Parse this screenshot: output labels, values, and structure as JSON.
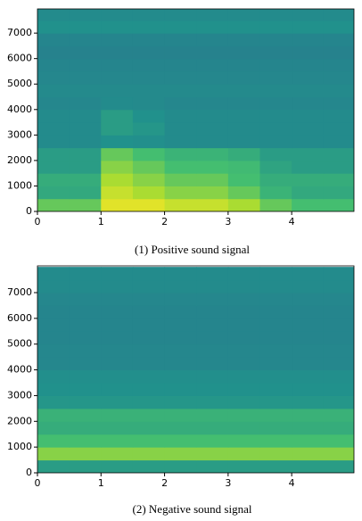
{
  "chart_data": [
    {
      "type": "heatmap",
      "caption": "(1) Positive sound signal",
      "xbins": [
        0,
        0.5,
        1,
        1.5,
        2,
        2.5,
        3,
        3.5,
        4,
        4.5,
        5
      ],
      "ybins": [
        0,
        500,
        1000,
        1500,
        2000,
        2500,
        3000,
        3500,
        4000,
        4500,
        5000,
        5500,
        6000,
        6500,
        7000,
        7500,
        8000
      ],
      "z": [
        [
          0.75,
          0.75,
          0.95,
          0.95,
          0.9,
          0.9,
          0.85,
          0.75,
          0.7,
          0.7
        ],
        [
          0.6,
          0.6,
          0.9,
          0.85,
          0.8,
          0.8,
          0.75,
          0.65,
          0.6,
          0.6
        ],
        [
          0.62,
          0.62,
          0.85,
          0.8,
          0.75,
          0.75,
          0.7,
          0.62,
          0.62,
          0.62
        ],
        [
          0.55,
          0.55,
          0.8,
          0.75,
          0.7,
          0.7,
          0.68,
          0.58,
          0.55,
          0.55
        ],
        [
          0.55,
          0.55,
          0.75,
          0.7,
          0.65,
          0.65,
          0.62,
          0.55,
          0.55,
          0.55
        ],
        [
          0.45,
          0.45,
          0.5,
          0.48,
          0.45,
          0.45,
          0.45,
          0.45,
          0.45,
          0.45
        ],
        [
          0.45,
          0.45,
          0.55,
          0.52,
          0.45,
          0.45,
          0.45,
          0.45,
          0.45,
          0.45
        ],
        [
          0.45,
          0.45,
          0.55,
          0.5,
          0.45,
          0.45,
          0.45,
          0.45,
          0.45,
          0.45
        ],
        [
          0.42,
          0.42,
          0.45,
          0.44,
          0.42,
          0.42,
          0.42,
          0.42,
          0.42,
          0.42
        ],
        [
          0.44,
          0.44,
          0.44,
          0.44,
          0.44,
          0.44,
          0.44,
          0.44,
          0.44,
          0.44
        ],
        [
          0.42,
          0.42,
          0.42,
          0.42,
          0.42,
          0.42,
          0.42,
          0.42,
          0.42,
          0.42
        ],
        [
          0.4,
          0.4,
          0.4,
          0.4,
          0.4,
          0.4,
          0.4,
          0.4,
          0.4,
          0.4
        ],
        [
          0.38,
          0.38,
          0.38,
          0.38,
          0.38,
          0.38,
          0.38,
          0.38,
          0.38,
          0.38
        ],
        [
          0.4,
          0.4,
          0.4,
          0.4,
          0.4,
          0.4,
          0.4,
          0.4,
          0.4,
          0.4
        ],
        [
          0.5,
          0.5,
          0.5,
          0.5,
          0.5,
          0.5,
          0.5,
          0.5,
          0.5,
          0.5
        ],
        [
          0.45,
          0.45,
          0.45,
          0.45,
          0.45,
          0.45,
          0.45,
          0.45,
          0.45,
          0.45
        ]
      ],
      "xlim": [
        0,
        4.98
      ],
      "ylim": [
        0,
        7950
      ],
      "xticks": [
        0,
        1,
        2,
        3,
        4
      ],
      "yticks": [
        0,
        1000,
        2000,
        3000,
        4000,
        5000,
        6000,
        7000
      ]
    },
    {
      "type": "heatmap",
      "caption": "(2) Negative sound signal",
      "xbins": [
        0,
        0.5,
        1,
        1.5,
        2,
        2.5,
        3,
        3.5,
        4,
        4.5,
        5
      ],
      "ybins": [
        0,
        500,
        1000,
        1500,
        2000,
        2500,
        3000,
        3500,
        4000,
        4500,
        5000,
        5500,
        6000,
        6500,
        7000,
        7500,
        8000
      ],
      "z": [
        [
          0.55,
          0.55,
          0.55,
          0.55,
          0.55,
          0.55,
          0.55,
          0.55,
          0.55,
          0.55
        ],
        [
          0.8,
          0.8,
          0.8,
          0.8,
          0.8,
          0.8,
          0.8,
          0.8,
          0.8,
          0.8
        ],
        [
          0.7,
          0.7,
          0.7,
          0.7,
          0.7,
          0.7,
          0.7,
          0.7,
          0.7,
          0.7
        ],
        [
          0.62,
          0.62,
          0.62,
          0.62,
          0.62,
          0.62,
          0.62,
          0.62,
          0.62,
          0.62
        ],
        [
          0.64,
          0.64,
          0.64,
          0.64,
          0.64,
          0.64,
          0.64,
          0.64,
          0.64,
          0.64
        ],
        [
          0.52,
          0.52,
          0.52,
          0.52,
          0.52,
          0.52,
          0.52,
          0.52,
          0.52,
          0.52
        ],
        [
          0.5,
          0.5,
          0.5,
          0.5,
          0.5,
          0.5,
          0.5,
          0.5,
          0.5,
          0.5
        ],
        [
          0.48,
          0.48,
          0.48,
          0.48,
          0.48,
          0.48,
          0.48,
          0.48,
          0.48,
          0.48
        ],
        [
          0.42,
          0.42,
          0.42,
          0.42,
          0.42,
          0.42,
          0.42,
          0.42,
          0.42,
          0.42
        ],
        [
          0.42,
          0.42,
          0.42,
          0.42,
          0.42,
          0.42,
          0.42,
          0.42,
          0.42,
          0.42
        ],
        [
          0.4,
          0.4,
          0.4,
          0.4,
          0.4,
          0.4,
          0.4,
          0.4,
          0.4,
          0.4
        ],
        [
          0.4,
          0.4,
          0.4,
          0.4,
          0.4,
          0.4,
          0.4,
          0.4,
          0.4,
          0.4
        ],
        [
          0.4,
          0.4,
          0.4,
          0.4,
          0.4,
          0.4,
          0.4,
          0.4,
          0.4,
          0.4
        ],
        [
          0.42,
          0.42,
          0.42,
          0.42,
          0.42,
          0.42,
          0.42,
          0.42,
          0.42,
          0.42
        ],
        [
          0.45,
          0.45,
          0.45,
          0.45,
          0.45,
          0.45,
          0.45,
          0.45,
          0.45,
          0.45
        ],
        [
          0.45,
          0.45,
          0.45,
          0.45,
          0.45,
          0.45,
          0.45,
          0.45,
          0.45,
          0.45
        ]
      ],
      "xlim": [
        0,
        4.98
      ],
      "ylim": [
        0,
        8040
      ],
      "xticks": [
        0,
        1,
        2,
        3,
        4
      ],
      "yticks": [
        0,
        1000,
        2000,
        3000,
        4000,
        5000,
        6000,
        7000
      ]
    }
  ]
}
